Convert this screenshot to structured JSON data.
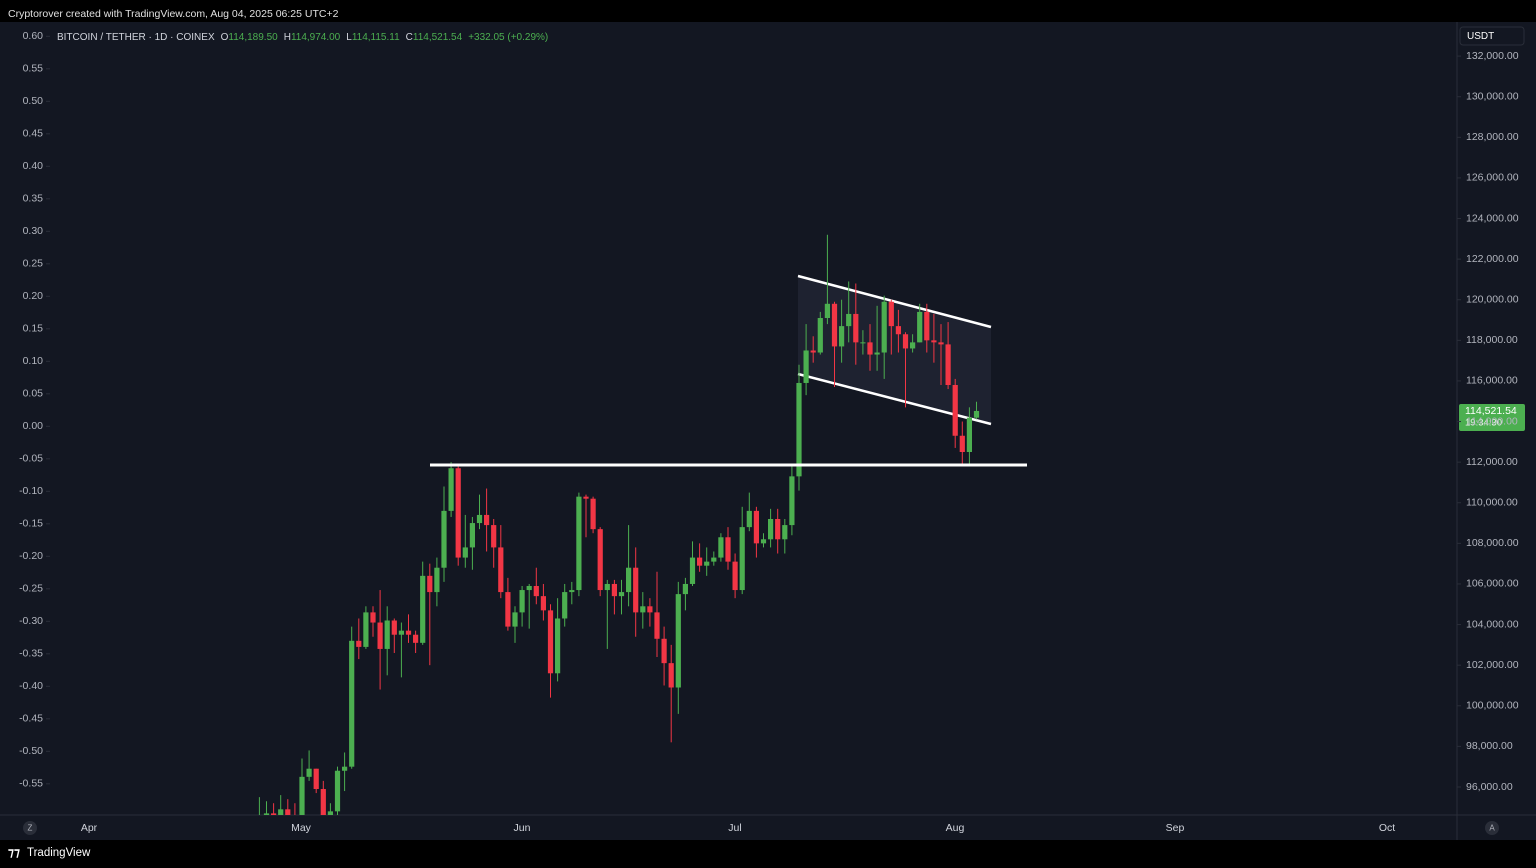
{
  "header": "Cryptorover created with TradingView.com, Aug 04, 2025 06:25 UTC+2",
  "footer": "TradingView",
  "currency": "USDT",
  "buttons": [
    "Z",
    "A"
  ],
  "legend": {
    "symbol": "BITCOIN / TETHER · 1D · COINEX",
    "ohlc": [
      {
        "label": "O",
        "value": "114,189.50"
      },
      {
        "label": "H",
        "value": "114,974.00"
      },
      {
        "label": "L",
        "value": "114,115.11"
      },
      {
        "label": "C",
        "value": "114,521.54"
      }
    ],
    "change": "+332.05 (+0.29%)"
  },
  "last_price": {
    "label": "114,521.54",
    "countdown": "19:34:30"
  },
  "chart_data": {
    "type": "candlestick",
    "up_color": "#4caf50",
    "down_color": "#f23645",
    "x_labels": [
      "Apr",
      "May",
      "Jun",
      "Jul",
      "Aug",
      "Sep",
      "Oct"
    ],
    "open": [
      93800,
      94600,
      94700,
      93800,
      94900,
      94300,
      94200,
      96500,
      96900,
      95900,
      94300,
      94800,
      96800,
      97000,
      103200,
      102900,
      104600,
      104100,
      102800,
      104200,
      103500,
      103700,
      103500,
      103100,
      106400,
      105600,
      106800,
      109600,
      111700,
      107300,
      107800,
      109000,
      109400,
      108900,
      107800,
      105600,
      103900,
      104600,
      105700,
      105900,
      105400,
      104700,
      101600,
      104300,
      105600,
      105700,
      110300,
      110200,
      108700,
      105700,
      106000,
      105400,
      105600,
      106800,
      104600,
      104900,
      104600,
      103300,
      102100,
      100900,
      105500,
      106000,
      107300,
      106900,
      107100,
      107300,
      108300,
      107100,
      105700,
      108800,
      109600,
      108000,
      108200,
      109200,
      108200,
      108900,
      111300,
      115900,
      117500,
      117400,
      119100,
      119800,
      117700,
      118700,
      119300,
      117900,
      117900,
      117300,
      117400,
      119900,
      118700,
      118300,
      117600,
      117900,
      119400,
      118000,
      117900,
      117800,
      115800,
      113300,
      112500,
      114189.5
    ],
    "high": [
      95500,
      95300,
      95200,
      95600,
      95400,
      95200,
      97400,
      97800,
      96900,
      96300,
      95200,
      97000,
      97700,
      103900,
      104300,
      104900,
      104900,
      105700,
      104900,
      104300,
      104100,
      104500,
      103700,
      107100,
      107000,
      107300,
      110800,
      112000,
      111800,
      109400,
      109300,
      110400,
      110700,
      109200,
      108900,
      106300,
      104900,
      105900,
      106000,
      106800,
      106000,
      105000,
      105300,
      106000,
      106100,
      110500,
      110400,
      110300,
      108800,
      106200,
      106200,
      106200,
      108900,
      107800,
      105600,
      105300,
      106600,
      103900,
      103000,
      106100,
      106300,
      108100,
      108000,
      107800,
      107600,
      108500,
      108800,
      107500,
      109800,
      110500,
      109800,
      108500,
      109700,
      109700,
      109200,
      111900,
      116800,
      118800,
      118200,
      119400,
      123200,
      119900,
      120000,
      120900,
      120800,
      118500,
      118800,
      119700,
      120200,
      120000,
      119500,
      118400,
      118300,
      119800,
      119800,
      119300,
      118800,
      118900,
      116100,
      114000,
      114700,
      114974
    ],
    "low": [
      93200,
      94100,
      93500,
      92900,
      93900,
      92900,
      94100,
      96300,
      95700,
      93600,
      93500,
      93400,
      95800,
      96900,
      102300,
      102800,
      103400,
      100800,
      101500,
      102600,
      101400,
      103100,
      102600,
      103000,
      102000,
      104900,
      106100,
      109300,
      106900,
      106800,
      106700,
      108700,
      107600,
      106800,
      105300,
      103700,
      103100,
      103900,
      103800,
      105000,
      104200,
      100400,
      101200,
      103900,
      105000,
      105400,
      108300,
      108500,
      105400,
      102800,
      104500,
      104500,
      104900,
      103400,
      103800,
      103900,
      102400,
      101000,
      98200,
      99600,
      104700,
      105900,
      106600,
      106400,
      106900,
      107100,
      106700,
      105300,
      105500,
      108600,
      107300,
      107800,
      107800,
      107500,
      107500,
      108400,
      110600,
      115300,
      116900,
      117300,
      118800,
      115700,
      116900,
      117900,
      116800,
      117300,
      116500,
      116500,
      116100,
      117300,
      117400,
      114700,
      117400,
      117900,
      117400,
      116900,
      115800,
      115600,
      112700,
      111900,
      111900,
      114115.11
    ],
    "close": [
      94600,
      94700,
      93800,
      94900,
      94300,
      94200,
      96500,
      96900,
      95900,
      94300,
      94800,
      96800,
      97000,
      103200,
      102900,
      104600,
      104100,
      102800,
      104200,
      103500,
      103700,
      103500,
      103100,
      106400,
      105600,
      106800,
      109600,
      111700,
      107300,
      107800,
      109000,
      109400,
      108900,
      107800,
      105600,
      103900,
      104600,
      105700,
      105900,
      105400,
      104700,
      101600,
      104300,
      105600,
      105700,
      110300,
      110200,
      108700,
      105700,
      106000,
      105400,
      105600,
      106800,
      104600,
      104900,
      104600,
      103300,
      102100,
      100900,
      105500,
      106000,
      107300,
      106900,
      107100,
      107300,
      108300,
      107100,
      105700,
      108800,
      109600,
      108000,
      108200,
      109200,
      108200,
      108900,
      111300,
      115900,
      117500,
      117400,
      119100,
      119800,
      117700,
      118700,
      119300,
      117900,
      117900,
      117300,
      117400,
      119900,
      118700,
      118300,
      117600,
      117900,
      119400,
      118000,
      117900,
      117800,
      115800,
      113300,
      112500,
      114189.5,
      114521.54
    ],
    "ylim": [
      94620,
      133680
    ],
    "yticks": [
      {
        "value": 96000,
        "label": "96,000.00"
      },
      {
        "value": 98000,
        "label": "98,000.00"
      },
      {
        "value": 100000,
        "label": "100,000.00"
      },
      {
        "value": 102000,
        "label": "102,000.00"
      },
      {
        "value": 104000,
        "label": "104,000.00"
      },
      {
        "value": 106000,
        "label": "106,000.00"
      },
      {
        "value": 108000,
        "label": "108,000.00"
      },
      {
        "value": 110000,
        "label": "110,000.00"
      },
      {
        "value": 112000,
        "label": "112,000.00"
      },
      {
        "value": 114000,
        "label": "114,000.00"
      },
      {
        "value": 116000,
        "label": "116,000.00"
      },
      {
        "value": 118000,
        "label": "118,000.00"
      },
      {
        "value": 120000,
        "label": "120,000.00"
      },
      {
        "value": 122000,
        "label": "122,000.00"
      },
      {
        "value": 124000,
        "label": "124,000.00"
      },
      {
        "value": 126000,
        "label": "126,000.00"
      },
      {
        "value": 128000,
        "label": "128,000.00"
      },
      {
        "value": 130000,
        "label": "130,000.00"
      },
      {
        "value": 132000,
        "label": "132,000.00"
      }
    ],
    "y2lim": [
      -0.598,
      0.622
    ],
    "y2ticks": [
      {
        "value": 0.6,
        "label": "0.60"
      },
      {
        "value": 0.55,
        "label": "0.55"
      },
      {
        "value": 0.5,
        "label": "0.50"
      },
      {
        "value": 0.45,
        "label": "0.45"
      },
      {
        "value": 0.4,
        "label": "0.40"
      },
      {
        "value": 0.35,
        "label": "0.35"
      },
      {
        "value": 0.3,
        "label": "0.30"
      },
      {
        "value": 0.25,
        "label": "0.25"
      },
      {
        "value": 0.2,
        "label": "0.20"
      },
      {
        "value": 0.15,
        "label": "0.15"
      },
      {
        "value": 0.1,
        "label": "0.10"
      },
      {
        "value": 0.05,
        "label": "0.05"
      },
      {
        "value": 0,
        "label": "0.00"
      },
      {
        "value": -0.05,
        "label": "-0.05"
      },
      {
        "value": -0.1,
        "label": "-0.10"
      },
      {
        "value": -0.15,
        "label": "-0.15"
      },
      {
        "value": -0.2,
        "label": "-0.20"
      },
      {
        "value": -0.25,
        "label": "-0.25"
      },
      {
        "value": -0.3,
        "label": "-0.30"
      },
      {
        "value": -0.35,
        "label": "-0.35"
      },
      {
        "value": -0.4,
        "label": "-0.40"
      },
      {
        "value": -0.45,
        "label": "-0.45"
      },
      {
        "value": -0.5,
        "label": "-0.50"
      },
      {
        "value": -0.55,
        "label": "-0.55"
      }
    ]
  }
}
